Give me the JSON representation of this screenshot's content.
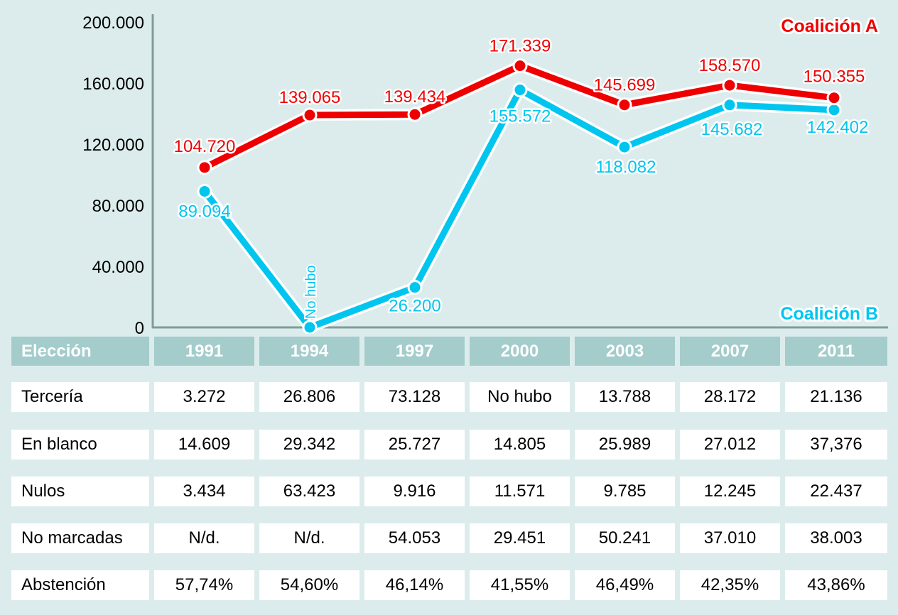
{
  "chart_data": {
    "type": "line",
    "title": "",
    "xlabel": "",
    "ylabel": "",
    "categories": [
      "1991",
      "1994",
      "1997",
      "2000",
      "2003",
      "2007",
      "2011"
    ],
    "ylim": [
      0,
      200000
    ],
    "yticks": [
      0,
      40000,
      80000,
      120000,
      160000,
      200000
    ],
    "ytick_labels": [
      "0",
      "40.000",
      "80.000",
      "120.000",
      "160.000",
      "200.000"
    ],
    "grid": false,
    "series": [
      {
        "name": "Coalición A",
        "color": "#ee0000",
        "values": [
          104720,
          139065,
          139434,
          171339,
          145699,
          158570,
          150355
        ],
        "labels": [
          "104.720",
          "139.065",
          "139.434",
          "171.339",
          "145.699",
          "158.570",
          "150.355"
        ]
      },
      {
        "name": "Coalición B",
        "color": "#00c6ef",
        "values": [
          89094,
          0,
          26200,
          155572,
          118082,
          145682,
          142402
        ],
        "labels": [
          "89.094",
          "No hubo",
          "26.200",
          "155.572",
          "118.082",
          "145.682",
          "142.402"
        ]
      }
    ],
    "legend": {
      "a": "Coalición A",
      "b": "Coalición B",
      "placement_a": "top-right",
      "placement_b": "bottom-right"
    }
  },
  "table": {
    "header": [
      "Elección",
      "1991",
      "1994",
      "1997",
      "2000",
      "2003",
      "2007",
      "2011"
    ],
    "rows": [
      [
        "Tercería",
        "3.272",
        "26.806",
        "73.128",
        "No hubo",
        "13.788",
        "28.172",
        "21.136"
      ],
      [
        "En blanco",
        "14.609",
        "29.342",
        "25.727",
        "14.805",
        "25.989",
        "27.012",
        "37,376"
      ],
      [
        "Nulos",
        "3.434",
        "63.423",
        "9.916",
        "11.571",
        "9.785",
        "12.245",
        "22.437"
      ],
      [
        "No marcadas",
        "N/d.",
        "N/d.",
        "54.053",
        "29.451",
        "50.241",
        "37.010",
        "38.003"
      ],
      [
        "Abstención",
        "57,74%",
        "54,60%",
        "46,14%",
        "41,55%",
        "46,49%",
        "42,35%",
        "43,86%"
      ]
    ]
  }
}
